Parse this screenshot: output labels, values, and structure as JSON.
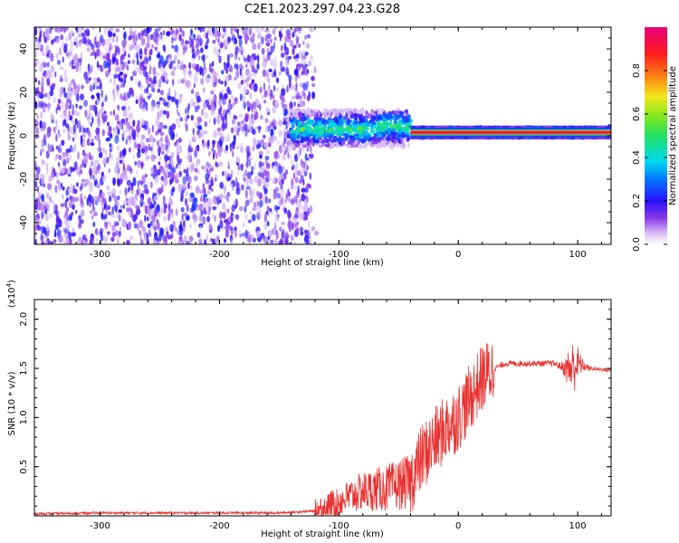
{
  "title": "C2E1.2023.297.04.23.G28",
  "chart_data": [
    {
      "type": "heatmap",
      "xlabel": "Height of straight line (km)",
      "ylabel": "Frequency (Hz)",
      "xlim": [
        -355,
        128
      ],
      "ylim": [
        -50,
        50
      ],
      "xticks": [
        -300,
        -200,
        -100,
        0,
        100
      ],
      "yticks": [
        -40,
        -20,
        0,
        20,
        40
      ],
      "xtick_labels": [
        "-300",
        "-200",
        "-100",
        "0",
        "100"
      ],
      "ytick_labels": [
        "-40",
        "-20",
        "0",
        "20",
        "40"
      ],
      "colorbar": {
        "label": "Normalized spectral amplitude",
        "range": [
          0,
          1
        ],
        "ticks": [
          0.0,
          0.2,
          0.4,
          0.6,
          0.8
        ],
        "tick_labels": [
          "0.0",
          "0.2",
          "0.4",
          "0.6",
          "0.8"
        ],
        "colors": [
          "#ffffff",
          "#c9a6f2",
          "#7a2fe6",
          "#2b12ff",
          "#00d2ff",
          "#22e640",
          "#f2e61a",
          "#ff7a12",
          "#ff1a20",
          "#e6007a"
        ]
      },
      "regions": [
        {
          "x_range": [
            -355,
            -125
          ],
          "frequency_range": [
            -50,
            50
          ],
          "amplitude": [
            0.0,
            0.2
          ],
          "description_color": "#7a2fe6"
        },
        {
          "x_range": [
            -140,
            -40
          ],
          "frequency_range": [
            -5,
            12
          ],
          "amplitude": [
            0.2,
            0.5
          ]
        },
        {
          "x_range": [
            -40,
            128
          ],
          "frequency_center": 1.5,
          "frequency_width": 4,
          "amplitude": [
            0.8,
            1.0
          ]
        }
      ]
    },
    {
      "type": "line",
      "xlabel": "Height of straight line (km)",
      "ylabel": "SNR (10 * v/v)",
      "y_multiplier_label": "(x10",
      "y_multiplier_exp": "4",
      "y_multiplier_close": ")",
      "xlim": [
        -355,
        128
      ],
      "ylim": [
        0,
        2.2
      ],
      "xticks": [
        -300,
        -200,
        -100,
        0,
        100
      ],
      "yticks": [
        0.5,
        1.0,
        1.5,
        2.0
      ],
      "xtick_labels": [
        "-300",
        "-200",
        "-100",
        "0",
        "100"
      ],
      "ytick_labels": [
        "0.5",
        "1.0",
        "1.5",
        "2.0"
      ],
      "line_color": "#e8312f",
      "series": [
        {
          "x": [
            -355,
            -300,
            -250,
            -200,
            -150,
            -120,
            -100,
            -80,
            -60,
            -40,
            -30,
            -20,
            -10,
            0,
            10,
            20,
            30,
            40,
            60,
            80,
            90,
            95,
            100,
            110,
            128
          ],
          "values": [
            0.02,
            0.03,
            0.03,
            0.03,
            0.03,
            0.05,
            0.15,
            0.25,
            0.28,
            0.35,
            0.6,
            0.75,
            0.9,
            1.0,
            1.2,
            1.4,
            1.5,
            1.55,
            1.55,
            1.55,
            1.5,
            1.5,
            1.55,
            1.5,
            1.48
          ]
        }
      ]
    }
  ]
}
